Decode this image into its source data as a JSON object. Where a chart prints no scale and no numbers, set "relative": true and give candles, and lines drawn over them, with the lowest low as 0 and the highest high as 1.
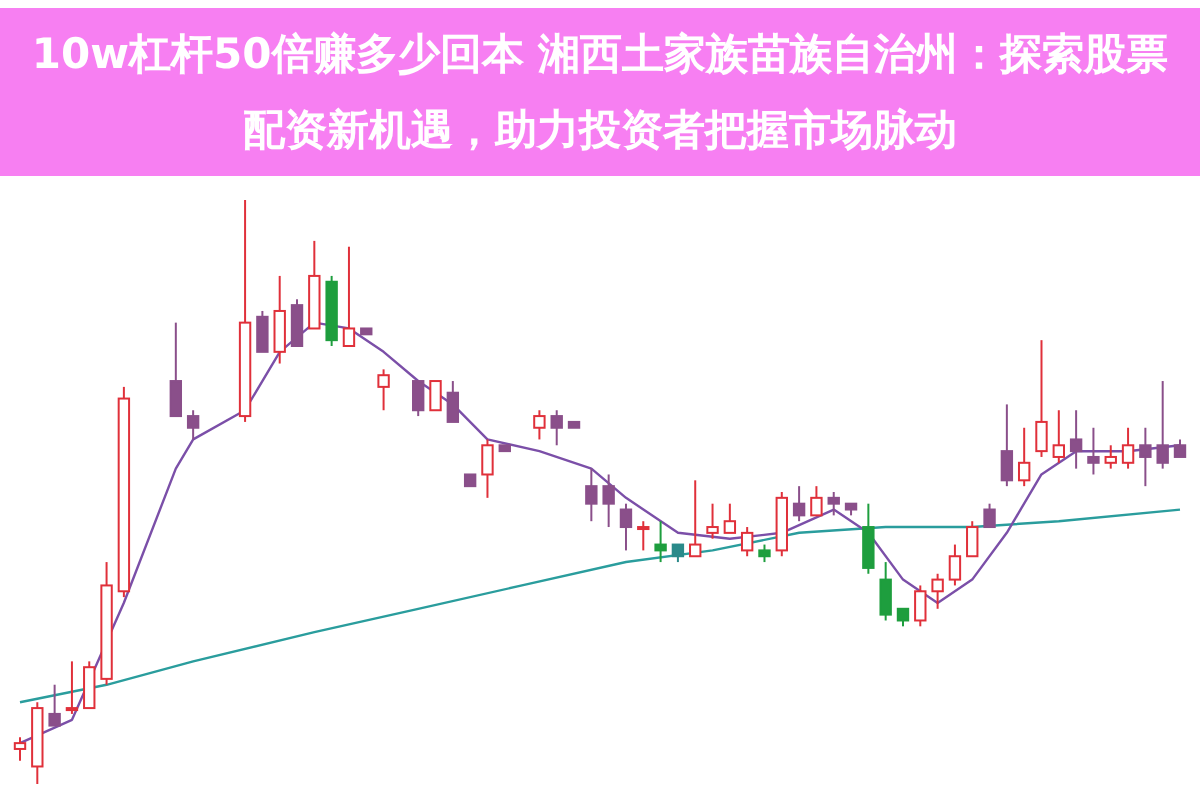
{
  "chart_data": {
    "type": "candlestick",
    "title": "10w杠杆50倍赚多少回本 湘西土家族苗族自治州：探索股票配资新机遇，助力投资者把握市场脉动",
    "relative": true,
    "categories": [
      null,
      null,
      null,
      null,
      null,
      null,
      null,
      null,
      null,
      null,
      null,
      null,
      null,
      null,
      null,
      null,
      null,
      null,
      null,
      null,
      null,
      null,
      null,
      null,
      null,
      null,
      null,
      null,
      null,
      null,
      null,
      null,
      null,
      null,
      null,
      null,
      null,
      null,
      null,
      null,
      null,
      null,
      null,
      null,
      null,
      null,
      null,
      null,
      null,
      null,
      null,
      null,
      null,
      null,
      null,
      null,
      null,
      null,
      null,
      null,
      null,
      null,
      null,
      null,
      null,
      null,
      null,
      null
    ],
    "ohlc": [
      [
        0.06,
        0.08,
        0.04,
        0.07
      ],
      [
        0.03,
        0.14,
        0,
        0.13
      ],
      [
        0.12,
        0.17,
        0.1,
        0.1
      ],
      [
        0.13,
        0.21,
        0.12,
        0.13
      ],
      [
        0.13,
        0.21,
        0.13,
        0.2
      ],
      [
        0.18,
        0.38,
        0.17,
        0.34
      ],
      [
        0.33,
        0.68,
        0.32,
        0.66
      ],
      null,
      null,
      [
        0.69,
        0.79,
        0.63,
        0.63
      ],
      [
        0.63,
        0.64,
        0.59,
        0.61
      ],
      null,
      null,
      [
        0.63,
        1,
        0.62,
        0.79
      ],
      [
        0.8,
        0.81,
        0.74,
        0.74
      ],
      [
        0.74,
        0.87,
        0.72,
        0.81
      ],
      [
        0.82,
        0.83,
        0.75,
        0.75
      ],
      [
        0.78,
        0.93,
        0.78,
        0.87
      ],
      [
        0.86,
        0.87,
        0.75,
        0.76
      ],
      [
        0.75,
        0.92,
        0.75,
        0.78
      ],
      [
        0.78,
        0.78,
        0.77,
        0.77
      ],
      [
        0.68,
        0.71,
        0.64,
        0.7
      ],
      null,
      [
        0.69,
        0.69,
        0.63,
        0.64
      ],
      [
        0.64,
        0.69,
        0.64,
        0.69
      ],
      [
        0.67,
        0.69,
        0.62,
        0.62
      ],
      [
        0.53,
        0.53,
        0.51,
        0.51
      ],
      [
        0.53,
        0.59,
        0.49,
        0.58
      ],
      [
        0.58,
        0.58,
        0.57,
        0.57
      ],
      null,
      [
        0.61,
        0.64,
        0.59,
        0.63
      ],
      [
        0.63,
        0.64,
        0.58,
        0.61
      ],
      [
        0.62,
        0.62,
        0.61,
        0.61
      ],
      [
        0.51,
        0.54,
        0.45,
        0.48
      ],
      [
        0.51,
        0.53,
        0.44,
        0.48
      ],
      [
        0.47,
        0.48,
        0.4,
        0.44
      ],
      [
        0.44,
        0.45,
        0.4,
        0.44
      ],
      [
        0.41,
        0.45,
        0.38,
        0.4
      ],
      [
        0.41,
        0.41,
        0.38,
        0.39
      ],
      [
        0.39,
        0.52,
        0.39,
        0.41
      ],
      [
        0.43,
        0.48,
        0.42,
        0.44
      ],
      [
        0.43,
        0.48,
        0.43,
        0.45
      ],
      [
        0.4,
        0.44,
        0.39,
        0.43
      ],
      [
        0.4,
        0.41,
        0.38,
        0.39
      ],
      [
        0.4,
        0.5,
        0.39,
        0.49
      ],
      [
        0.48,
        0.51,
        0.45,
        0.46
      ],
      [
        0.46,
        0.51,
        0.46,
        0.49
      ],
      [
        0.49,
        0.5,
        0.46,
        0.48
      ],
      [
        0.48,
        0.48,
        0.46,
        0.47
      ],
      [
        0.44,
        0.48,
        0.36,
        0.37
      ],
      [
        0.35,
        0.38,
        0.28,
        0.29
      ],
      [
        0.3,
        0.3,
        0.27,
        0.28
      ],
      [
        0.28,
        0.34,
        0.27,
        0.33
      ],
      [
        0.33,
        0.36,
        0.3,
        0.35
      ],
      [
        0.35,
        0.41,
        0.34,
        0.39
      ],
      [
        0.39,
        0.45,
        0.39,
        0.44
      ],
      [
        0.47,
        0.48,
        0.44,
        0.44
      ],
      [
        0.57,
        0.65,
        0.51,
        0.52
      ],
      [
        0.52,
        0.61,
        0.51,
        0.55
      ],
      [
        0.57,
        0.76,
        0.56,
        0.62
      ],
      [
        0.56,
        0.64,
        0.55,
        0.58
      ],
      [
        0.59,
        0.64,
        0.54,
        0.57
      ],
      [
        0.56,
        0.61,
        0.53,
        0.55
      ],
      [
        0.55,
        0.58,
        0.54,
        0.56
      ],
      [
        0.55,
        0.61,
        0.54,
        0.58
      ],
      [
        0.58,
        0.61,
        0.51,
        0.56
      ],
      [
        0.58,
        0.69,
        0.54,
        0.55
      ],
      [
        0.58,
        0.59,
        0.56,
        0.56
      ]
    ],
    "colors": [
      "#e0303a",
      "#e0303a",
      "#8a4f8a",
      "#e0303a",
      "#e0303a",
      "#e0303a",
      "#e0303a",
      null,
      null,
      "#8a4f8a",
      "#8a4f8a",
      null,
      null,
      "#e0303a",
      "#8a4f8a",
      "#e0303a",
      "#8a4f8a",
      "#e0303a",
      "#1e9e3e",
      "#e0303a",
      "#8a4f8a",
      "#e0303a",
      null,
      "#8a4f8a",
      "#e0303a",
      "#8a4f8a",
      "#8a4f8a",
      "#e0303a",
      "#8a4f8a",
      null,
      "#e0303a",
      "#8a4f8a",
      "#8a4f8a",
      "#8a4f8a",
      "#8a4f8a",
      "#8a4f8a",
      "#e0303a",
      "#1e9e3e",
      "#2a8a8a",
      "#e0303a",
      "#e0303a",
      "#e0303a",
      "#e0303a",
      "#1e9e3e",
      "#e0303a",
      "#8a4f8a",
      "#e0303a",
      "#8a4f8a",
      "#8a4f8a",
      "#1e9e3e",
      "#1e9e3e",
      "#1e9e3e",
      "#e0303a",
      "#e0303a",
      "#e0303a",
      "#e0303a",
      "#8a4f8a",
      "#8a4f8a",
      "#e0303a",
      "#e0303a",
      "#e0303a",
      "#8a4f8a",
      "#8a4f8a",
      "#e0303a",
      "#e0303a",
      "#8a4f8a",
      "#8a4f8a",
      "#8a4f8a"
    ],
    "series": [
      {
        "type": "line",
        "color": "#2a9d9d",
        "values": [
          0.14,
          null,
          null,
          null,
          null,
          0.17,
          null,
          null,
          null,
          null,
          0.21,
          null,
          null,
          null,
          null,
          null,
          null,
          0.26,
          null,
          null,
          null,
          null,
          null,
          0.3,
          null,
          null,
          null,
          null,
          null,
          0.34,
          null,
          null,
          null,
          null,
          null,
          0.38,
          null,
          null,
          null,
          null,
          0.4,
          null,
          null,
          null,
          null,
          0.43,
          null,
          null,
          null,
          null,
          0.44,
          null,
          null,
          null,
          null,
          0.44,
          null,
          null,
          null,
          null,
          0.45,
          null,
          null,
          null,
          null,
          null,
          null,
          0.47
        ]
      },
      {
        "type": "line",
        "color": "#7b4fa8",
        "values": [
          0.07,
          null,
          null,
          0.11,
          null,
          null,
          0.31,
          null,
          null,
          0.54,
          0.59,
          null,
          null,
          0.64,
          null,
          0.74,
          null,
          0.79,
          null,
          0.78,
          null,
          0.74,
          null,
          0.69,
          null,
          0.65,
          null,
          0.59,
          null,
          null,
          0.57,
          null,
          null,
          0.54,
          null,
          0.49,
          null,
          null,
          0.43,
          null,
          null,
          0.42,
          null,
          null,
          0.43,
          null,
          null,
          0.47,
          null,
          0.43,
          null,
          0.35,
          null,
          0.31,
          null,
          0.35,
          null,
          0.43,
          null,
          0.53,
          null,
          0.57,
          null,
          null,
          0.57,
          null,
          null,
          0.58
        ]
      }
    ]
  }
}
